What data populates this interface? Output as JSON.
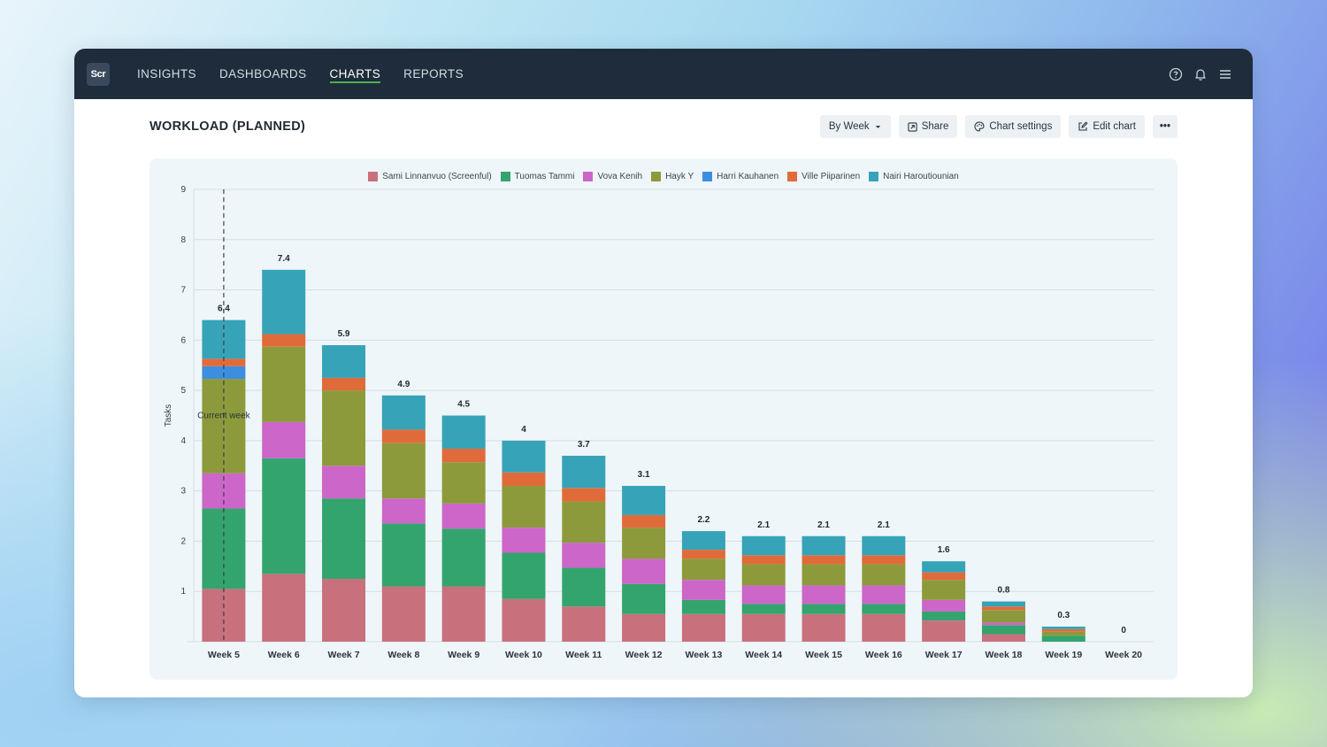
{
  "app": {
    "logo_text": "Scr",
    "nav": [
      {
        "label": "INSIGHTS"
      },
      {
        "label": "DASHBOARDS"
      },
      {
        "label": "CHARTS"
      },
      {
        "label": "REPORTS"
      }
    ],
    "active_nav": "CHARTS"
  },
  "header": {
    "title": "WORKLOAD (PLANNED)",
    "period_select": "By Week",
    "share_label": "Share",
    "chart_settings_label": "Chart settings",
    "edit_chart_label": "Edit chart",
    "more_label": "•••"
  },
  "chart_data": {
    "type": "bar",
    "stacked": true,
    "title": "WORKLOAD (PLANNED)",
    "xlabel": "",
    "ylabel": "Tasks",
    "ylim": [
      0,
      9
    ],
    "yticks": [
      1,
      2,
      3,
      4,
      5,
      6,
      7,
      8,
      9
    ],
    "grid": true,
    "legend_position": "top-center",
    "categories": [
      "Week 5",
      "Week 6",
      "Week 7",
      "Week 8",
      "Week 9",
      "Week 10",
      "Week 11",
      "Week 12",
      "Week 13",
      "Week 14",
      "Week 15",
      "Week 16",
      "Week 17",
      "Week 18",
      "Week 19",
      "Week 20"
    ],
    "totals": [
      "6.4",
      "7.4",
      "5.9",
      "4.9",
      "4.5",
      "4",
      "3.7",
      "3.1",
      "2.2",
      "2.1",
      "2.1",
      "2.1",
      "1.6",
      "0.8",
      "0.3",
      "0"
    ],
    "series": [
      {
        "name": "Sami Linnanvuo (Screenful)",
        "color": "#c8707c",
        "values": [
          1.05,
          1.35,
          1.25,
          1.1,
          1.1,
          0.85,
          0.7,
          0.55,
          0.55,
          0.55,
          0.55,
          0.55,
          0.42,
          0.15,
          0.0,
          0
        ]
      },
      {
        "name": "Tuomas Tammi",
        "color": "#34a46e",
        "values": [
          1.6,
          2.3,
          1.6,
          1.25,
          1.15,
          0.92,
          0.77,
          0.6,
          0.28,
          0.2,
          0.2,
          0.2,
          0.18,
          0.18,
          0.12,
          0
        ]
      },
      {
        "name": "Vova Kenih",
        "color": "#cc66c8",
        "values": [
          0.7,
          0.72,
          0.65,
          0.5,
          0.5,
          0.5,
          0.5,
          0.5,
          0.4,
          0.37,
          0.37,
          0.37,
          0.23,
          0.05,
          0.0,
          0
        ]
      },
      {
        "name": "Hayk Y",
        "color": "#8c9a3b",
        "values": [
          1.88,
          1.5,
          1.5,
          1.1,
          0.82,
          0.83,
          0.82,
          0.62,
          0.42,
          0.42,
          0.42,
          0.42,
          0.4,
          0.25,
          0.08,
          0
        ]
      },
      {
        "name": "Harri Kauhanen",
        "color": "#3d8ee0",
        "values": [
          0.25,
          0,
          0,
          0,
          0,
          0,
          0,
          0,
          0,
          0,
          0,
          0,
          0,
          0,
          0,
          0
        ]
      },
      {
        "name": "Ville Piiparinen",
        "color": "#e06b3a",
        "values": [
          0.15,
          0.25,
          0.25,
          0.27,
          0.27,
          0.27,
          0.27,
          0.25,
          0.18,
          0.18,
          0.18,
          0.18,
          0.15,
          0.07,
          0.05,
          0
        ]
      },
      {
        "name": "Nairi Haroutiounian",
        "color": "#36a3b8",
        "values": [
          0.77,
          1.28,
          0.65,
          0.68,
          0.66,
          0.63,
          0.64,
          0.58,
          0.37,
          0.38,
          0.38,
          0.38,
          0.22,
          0.1,
          0.05,
          0
        ]
      }
    ],
    "annotation": {
      "label": "Current week",
      "at": "Week 5"
    }
  }
}
